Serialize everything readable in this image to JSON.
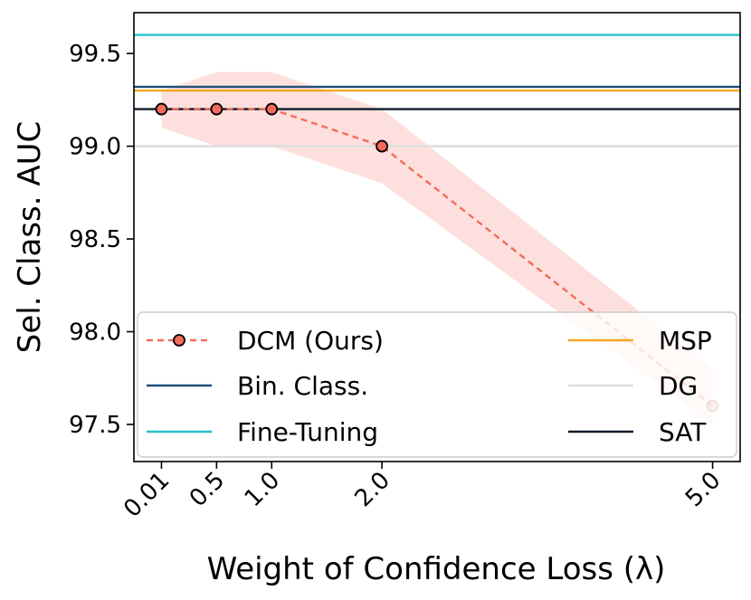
{
  "chart_data": {
    "type": "line",
    "xlabel": "Weight of Confidence Loss (λ)",
    "ylabel": "Sel. Class. AUC",
    "x_tick_labels": [
      "0.01",
      "0.5",
      "1.0",
      "2.0",
      "5.0"
    ],
    "x_tick_positions": [
      0.0,
      0.5,
      1.0,
      2.0,
      5.0
    ],
    "xlim": [
      -0.25,
      5.25
    ],
    "ylim": [
      97.3,
      99.72
    ],
    "y_ticks": [
      97.5,
      98.0,
      98.5,
      99.0,
      99.5
    ],
    "y_tick_labels": [
      "97.5",
      "98.0",
      "98.5",
      "99.0",
      "99.5"
    ],
    "dcm": {
      "name": "DCM (Ours)",
      "color": "#f26b5b",
      "x": [
        0.0,
        0.5,
        1.0,
        2.0,
        5.0
      ],
      "y": [
        99.2,
        99.2,
        99.2,
        99.0,
        97.6
      ],
      "band_lower": [
        99.1,
        99.0,
        99.0,
        98.8,
        97.5
      ],
      "band_upper": [
        99.3,
        99.4,
        99.4,
        99.2,
        97.8
      ],
      "band_color": "#fcd5d2"
    },
    "baselines": [
      {
        "name": "Bin. Class.",
        "value": 99.32,
        "color": "#1f4e79"
      },
      {
        "name": "Fine-Tuning",
        "value": 99.6,
        "color": "#26bec9"
      },
      {
        "name": "MSP",
        "value": 99.3,
        "color": "#f5a623"
      },
      {
        "name": "DG",
        "value": 99.0,
        "color": "#dedede"
      },
      {
        "name": "SAT",
        "value": 99.2,
        "color": "#0d1b2a"
      }
    ],
    "legend": {
      "placement": "lower-center",
      "columns": [
        [
          "DCM (Ours)",
          "Bin. Class.",
          "Fine-Tuning"
        ],
        [
          "MSP",
          "DG",
          "SAT"
        ]
      ]
    }
  }
}
